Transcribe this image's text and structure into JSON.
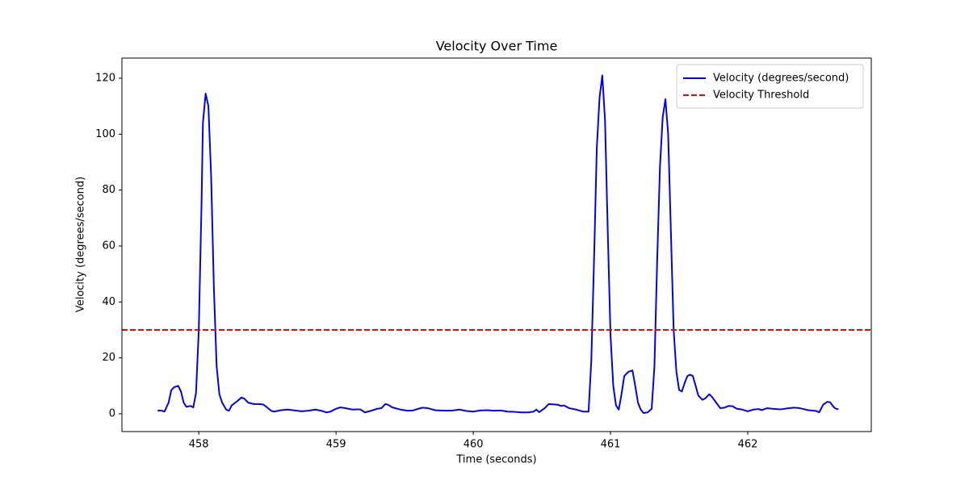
{
  "chart_data": {
    "type": "line",
    "title": "Velocity Over Time",
    "xlabel": "Time (seconds)",
    "ylabel": "Velocity (degrees/second)",
    "x": [
      457.7,
      457.73,
      457.75,
      457.78,
      457.8,
      457.82,
      457.85,
      457.87,
      457.89,
      457.91,
      457.94,
      457.96,
      457.98,
      458.0,
      458.02,
      458.03,
      458.05,
      458.07,
      458.09,
      458.11,
      458.13,
      458.15,
      458.17,
      458.2,
      458.22,
      458.24,
      458.28,
      458.31,
      458.33,
      458.36,
      458.4,
      458.44,
      458.47,
      458.5,
      458.53,
      458.55,
      458.6,
      458.65,
      458.7,
      458.75,
      458.8,
      458.85,
      458.9,
      458.93,
      458.96,
      459.0,
      459.03,
      459.07,
      459.12,
      459.16,
      459.18,
      459.21,
      459.25,
      459.3,
      459.33,
      459.36,
      459.38,
      459.41,
      459.47,
      459.52,
      459.56,
      459.6,
      459.63,
      459.67,
      459.72,
      459.76,
      459.8,
      459.85,
      459.9,
      459.95,
      460.0,
      460.05,
      460.1,
      460.15,
      460.2,
      460.25,
      460.3,
      460.35,
      460.4,
      460.44,
      460.46,
      460.48,
      460.52,
      460.55,
      460.58,
      460.62,
      460.64,
      460.66,
      460.7,
      460.75,
      460.8,
      460.84,
      460.86,
      460.88,
      460.9,
      460.92,
      460.94,
      460.96,
      460.98,
      461.0,
      461.02,
      461.04,
      461.06,
      461.08,
      461.1,
      461.13,
      461.16,
      461.18,
      461.2,
      461.22,
      461.24,
      461.27,
      461.3,
      461.32,
      461.34,
      461.36,
      461.38,
      461.4,
      461.42,
      461.44,
      461.46,
      461.48,
      461.5,
      461.52,
      461.54,
      461.56,
      461.58,
      461.6,
      461.62,
      461.64,
      461.67,
      461.69,
      461.72,
      461.74,
      461.77,
      461.8,
      461.83,
      461.86,
      461.89,
      461.92,
      461.96,
      462.0,
      462.04,
      462.08,
      462.1,
      462.14,
      462.18,
      462.24,
      462.3,
      462.34,
      462.38,
      462.44,
      462.5,
      462.52,
      462.55,
      462.58,
      462.6,
      462.63,
      462.65,
      462.66
    ],
    "series": [
      {
        "name": "Velocity (degrees/second)",
        "color": "#0000ff",
        "values": [
          1.2,
          1.1,
          0.8,
          4,
          8.5,
          9.5,
          10,
          8,
          4,
          2.5,
          2.8,
          2.3,
          7.5,
          30,
          75,
          104,
          114.5,
          110,
          85,
          45,
          17,
          7,
          4,
          1.5,
          1.1,
          3,
          4.5,
          5.8,
          5.5,
          4,
          3.5,
          3.5,
          3.3,
          2.2,
          1,
          0.8,
          1.3,
          1.5,
          1.2,
          0.9,
          1.1,
          1.5,
          1.0,
          0.5,
          0.8,
          1.8,
          2.3,
          2.0,
          1.5,
          1.6,
          1.5,
          0.5,
          1.0,
          1.8,
          2.0,
          3.5,
          3.2,
          2.3,
          1.5,
          1.1,
          1.2,
          1.8,
          2.2,
          2.0,
          1.3,
          1.2,
          1.1,
          1.2,
          1.5,
          1.0,
          0.8,
          1.2,
          1.3,
          1.1,
          1.2,
          0.8,
          0.7,
          0.5,
          0.5,
          0.8,
          1.5,
          0.6,
          2,
          3.5,
          3.4,
          3.2,
          2.8,
          3.0,
          2.0,
          1.5,
          0.8,
          0.8,
          19,
          55,
          95,
          113,
          121,
          105,
          65,
          28,
          10,
          3,
          1.5,
          7,
          13.5,
          15,
          15.5,
          10,
          4,
          1.5,
          0.3,
          0.5,
          1.8,
          17,
          55,
          88,
          106,
          112.5,
          100,
          65,
          30,
          15,
          8.5,
          8,
          11,
          13.5,
          14,
          13.5,
          10,
          6.5,
          5,
          5.5,
          7,
          6,
          4,
          2,
          2.2,
          2.8,
          2.7,
          1.8,
          1.5,
          0.9,
          1.5,
          1.7,
          1.3,
          2.0,
          1.8,
          1.6,
          2.0,
          2.2,
          2.0,
          1.3,
          1.0,
          0.5,
          3.3,
          4.3,
          4.1,
          2.2,
          1.7,
          1.7
        ]
      }
    ],
    "hlines": [
      {
        "name": "Velocity Threshold",
        "y": 30,
        "color": "#ff0000",
        "style": "dashed"
      }
    ],
    "xlim": [
      457.44,
      462.9
    ],
    "ylim": [
      -6.35,
      127.2
    ],
    "xticks": [
      458,
      459,
      460,
      461,
      462
    ],
    "yticks": [
      0,
      20,
      40,
      60,
      80,
      100,
      120
    ],
    "grid": false,
    "legend": "upper right"
  }
}
